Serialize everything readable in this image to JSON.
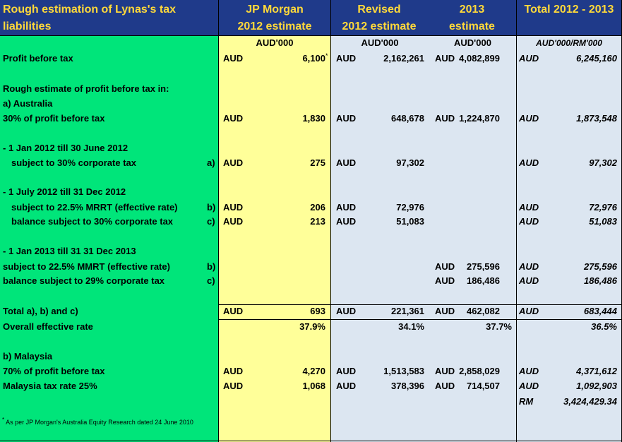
{
  "header": {
    "title_line1": "Rough estimation of Lynas's tax",
    "title_line2": "liabilities",
    "jp_line1": "JP Morgan",
    "jp_line2": "2012 estimate",
    "rev_line1": "Revised",
    "rev_line2": "2012 estimate",
    "y13_line1": "2013",
    "y13_line2": "estimate",
    "total": "Total 2012 - 2013"
  },
  "units": {
    "jp": "AUD'000",
    "rev": "AUD'000",
    "y13": "AUD'000",
    "total": "AUD'000/RM'000"
  },
  "rows": {
    "pbt": {
      "label": "Profit before tax",
      "jp_cur": "AUD",
      "jp": "6,100",
      "jp_mark": "*",
      "rev_cur": "AUD",
      "rev": "2,162,261",
      "y13_cur": "AUD",
      "y13": "4,082,899",
      "tot_cur": "AUD",
      "tot": "6,245,160"
    },
    "rough": {
      "label": "Rough estimate of profit before tax in:"
    },
    "aus": {
      "label": "a) Australia"
    },
    "aus30": {
      "label": "30% of profit before tax",
      "jp_cur": "AUD",
      "jp": "1,830",
      "rev_cur": "AUD",
      "rev": "648,678",
      "y13_cur": "AUD",
      "y13": "1,224,870",
      "tot_cur": "AUD",
      "tot": "1,873,548"
    },
    "p1": {
      "label": "- 1 Jan 2012 till 30 June 2012"
    },
    "p1a": {
      "label": "subject to 30% corporate tax",
      "mark": "a)",
      "jp_cur": "AUD",
      "jp": "275",
      "rev_cur": "AUD",
      "rev": "97,302",
      "tot_cur": "AUD",
      "tot": "97,302"
    },
    "p2": {
      "label": "- 1 July 2012 till 31 Dec 2012"
    },
    "p2b": {
      "label": "subject to 22.5% MRRT (effective rate)",
      "mark": "b)",
      "jp_cur": "AUD",
      "jp": "206",
      "rev_cur": "AUD",
      "rev": "72,976",
      "tot_cur": "AUD",
      "tot": "72,976"
    },
    "p2c": {
      "label": "balance subject to 30% corporate tax",
      "mark": "c)",
      "jp_cur": "AUD",
      "jp": "213",
      "rev_cur": "AUD",
      "rev": "51,083",
      "tot_cur": "AUD",
      "tot": "51,083"
    },
    "p3": {
      "label": "- 1 Jan 2013 till 31 31 Dec 2013"
    },
    "p3b": {
      "label": "subject to 22.5% MMRT (effective rate)",
      "mark": "b)",
      "y13_cur": "AUD",
      "y13": "275,596",
      "tot_cur": "AUD",
      "tot": "275,596"
    },
    "p3c": {
      "label": "balance subject to 29% corporate tax",
      "mark": "c)",
      "y13_cur": "AUD",
      "y13": "186,486",
      "tot_cur": "AUD",
      "tot": "186,486"
    },
    "total": {
      "label": "Total a), b) and c)",
      "jp_cur": "AUD",
      "jp": "693",
      "rev_cur": "AUD",
      "rev": "221,361",
      "y13_cur": "AUD",
      "y13": "462,082",
      "tot_cur": "AUD",
      "tot": "683,444"
    },
    "eff": {
      "label": "Overall effective rate",
      "jp": "37.9%",
      "rev": "34.1%",
      "y13": "37.7%",
      "tot": "36.5%"
    },
    "my": {
      "label": "b) Malaysia"
    },
    "my70": {
      "label": "70% of profit before tax",
      "jp_cur": "AUD",
      "jp": "4,270",
      "rev_cur": "AUD",
      "rev": "1,513,583",
      "y13_cur": "AUD",
      "y13": "2,858,029",
      "tot_cur": "AUD",
      "tot": "4,371,612"
    },
    "mytax": {
      "label": "Malaysia tax rate 25%",
      "jp_cur": "AUD",
      "jp": "1,068",
      "rev_cur": "AUD",
      "rev": "378,396",
      "y13_cur": "AUD",
      "y13": "714,507",
      "tot_cur": "AUD",
      "tot": "1,092,903"
    },
    "rm": {
      "tot_cur": "RM",
      "tot": "3,424,429.34"
    }
  },
  "footnote": {
    "mark": "*",
    "text": "As per JP Morgan's Australia Equity Research dated  24 June 2010"
  },
  "colors": {
    "header_bg": "#1f3a8a",
    "header_text": "#ffd93a",
    "label_bg": "#00e57a",
    "jp_bg": "#ffff99",
    "data_bg": "#dce6f1"
  }
}
